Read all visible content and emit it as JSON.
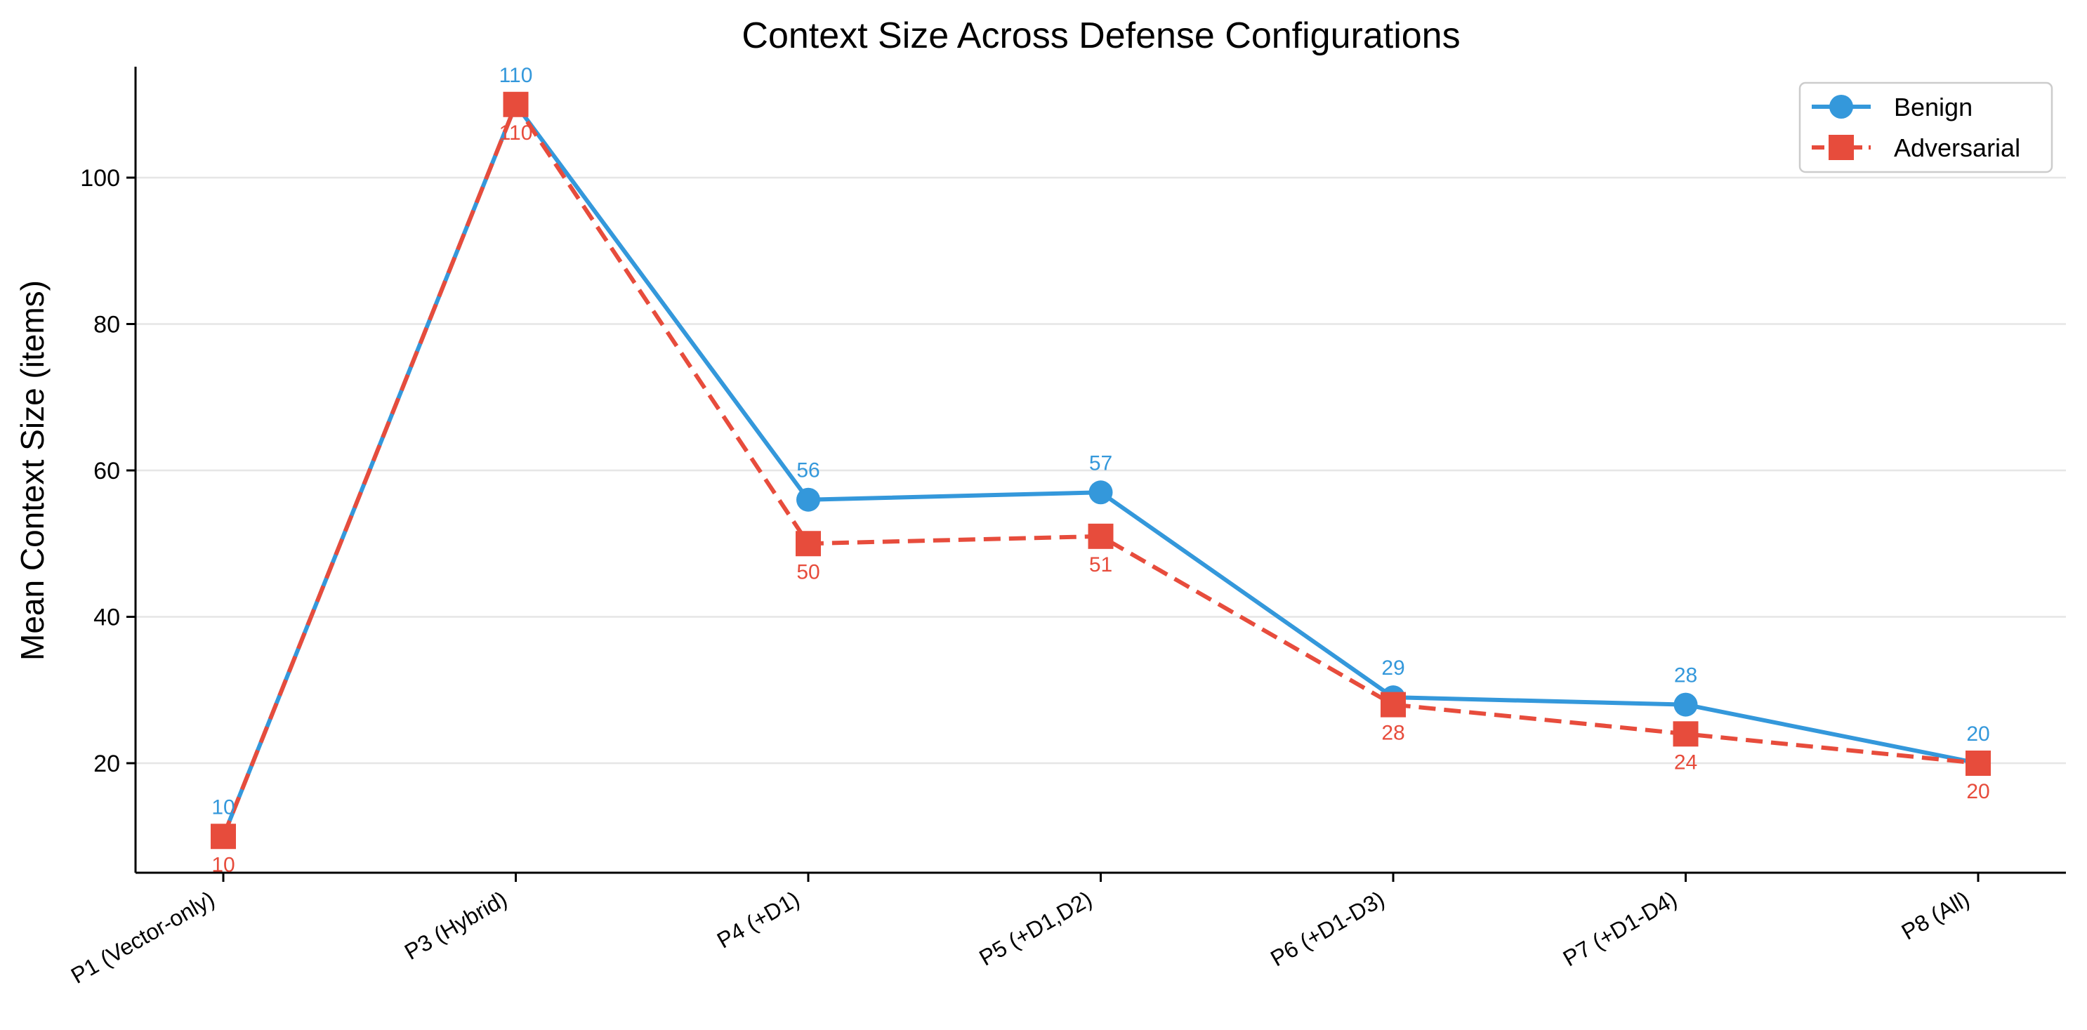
{
  "chart_data": {
    "type": "line",
    "title": "Context Size Across Defense Configurations",
    "xlabel": "",
    "ylabel": "Mean Context Size (items)",
    "categories": [
      "P1 (Vector-only)",
      "P3 (Hybrid)",
      "P4 (+D1)",
      "P5 (+D1,D2)",
      "P6 (+D1-D3)",
      "P7 (+D1-D4)",
      "P8 (All)"
    ],
    "ylim": [
      5,
      115
    ],
    "yticks": [
      20,
      40,
      60,
      80,
      100
    ],
    "grid": "horizontal",
    "legend_position": "top-right",
    "series": [
      {
        "name": "Benign",
        "values": [
          10,
          110,
          56,
          57,
          29,
          28,
          20
        ],
        "labels": [
          "10",
          "110",
          "56",
          "57",
          "29",
          "28",
          "20"
        ],
        "color": "#3498db",
        "marker": "circle",
        "line_style": "solid"
      },
      {
        "name": "Adversarial",
        "values": [
          10,
          110,
          50,
          51,
          28,
          24,
          20
        ],
        "labels": [
          "10",
          "110",
          "50",
          "51",
          "28",
          "24",
          "20"
        ],
        "color": "#e74c3c",
        "marker": "square",
        "line_style": "dashed"
      }
    ]
  }
}
